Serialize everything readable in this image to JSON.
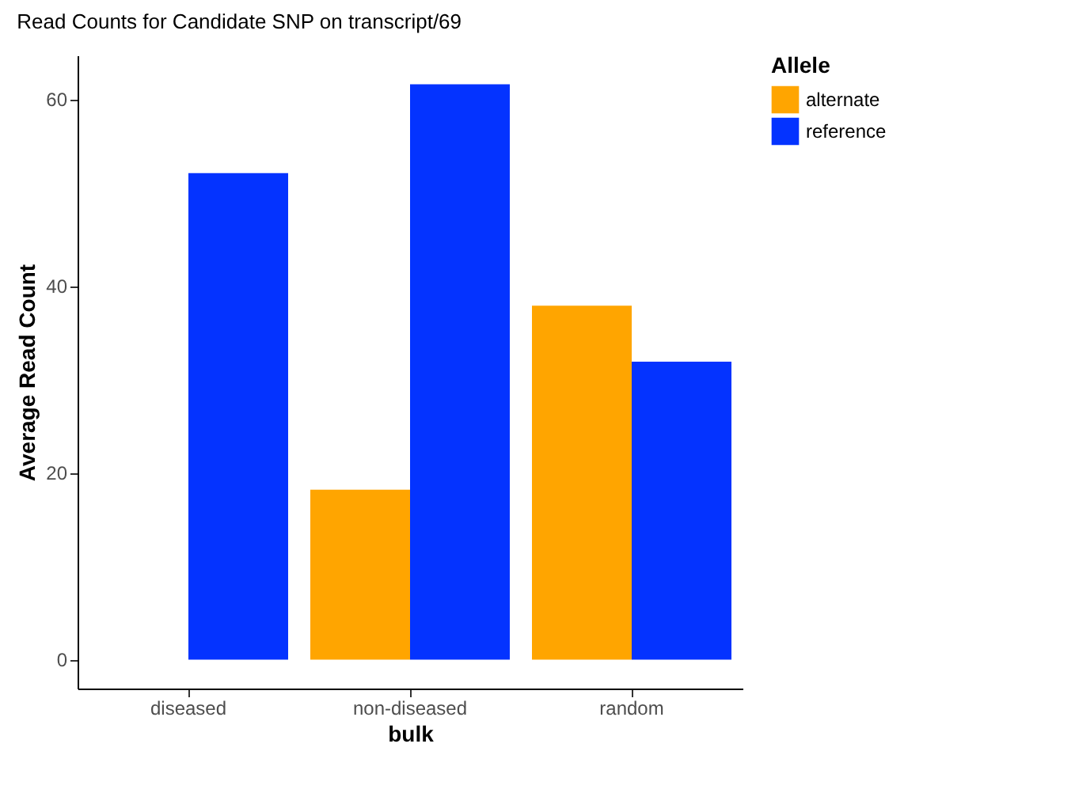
{
  "chart_data": {
    "type": "bar",
    "title": "Read Counts for Candidate SNP on transcript/69",
    "xlabel": "bulk",
    "ylabel": "Average Read Count",
    "legend_title": "Allele",
    "categories": [
      "diseased",
      "non-diseased",
      "random"
    ],
    "series": [
      {
        "name": "alternate",
        "color": "#ffa500",
        "values": [
          null,
          18.2,
          37.9
        ]
      },
      {
        "name": "reference",
        "color": "#0433ff",
        "values": [
          52.1,
          61.6,
          31.9
        ]
      }
    ],
    "ylim": [
      -3.1,
      64.7
    ],
    "yticks": [
      0,
      20,
      40,
      60
    ],
    "grid": false,
    "legend": "right"
  }
}
